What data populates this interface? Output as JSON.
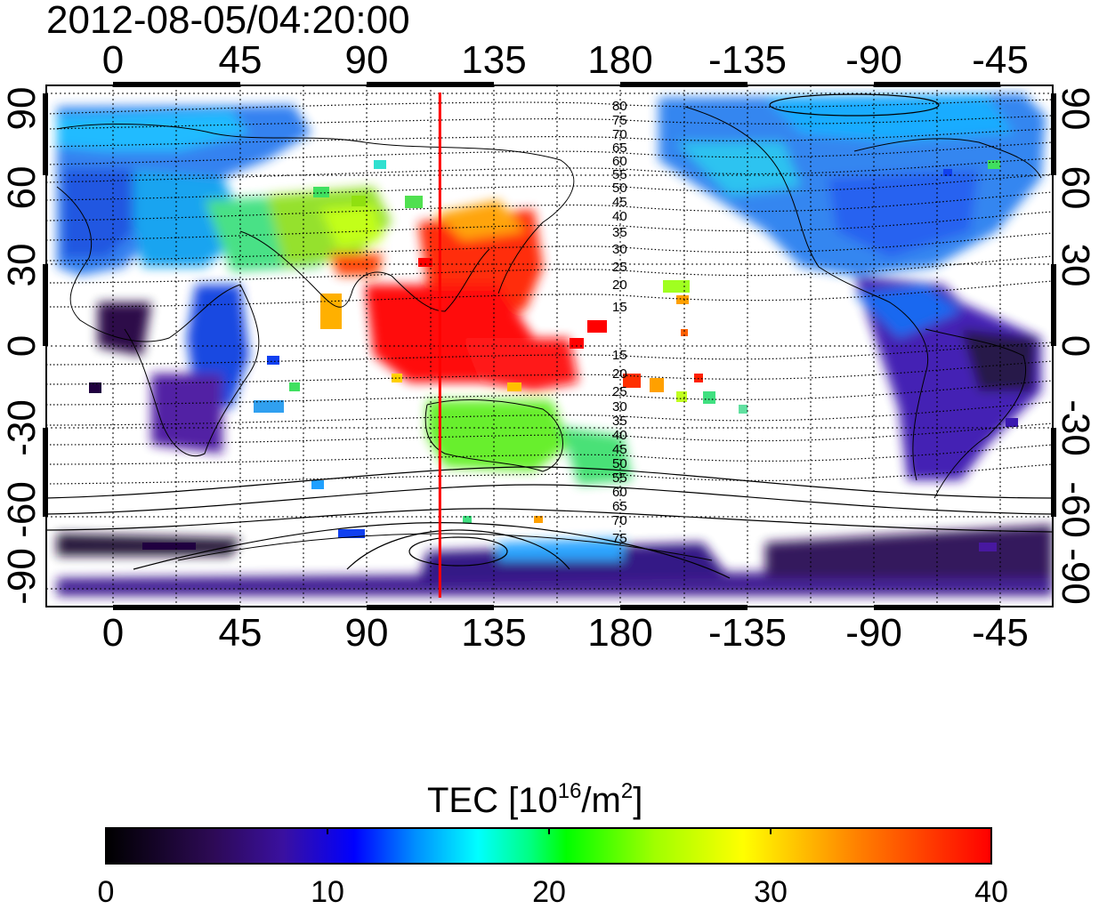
{
  "timestamp": "2012-08-05/04:20:00",
  "map": {
    "lon_ticks": [
      "0",
      "45",
      "90",
      "135",
      "180",
      "-135",
      "-90",
      "-45"
    ],
    "lat_ticks": [
      "90",
      "60",
      "30",
      "0",
      "-30",
      "-60",
      "-90"
    ],
    "contour_labels_north": [
      "80",
      "75",
      "70",
      "65",
      "60",
      "55",
      "50",
      "45",
      "40",
      "35",
      "30",
      "25",
      "20",
      "15"
    ],
    "contour_labels_south": [
      "15",
      "20",
      "25",
      "30",
      "35",
      "40",
      "45",
      "50",
      "55",
      "60",
      "65",
      "70",
      "75"
    ],
    "marker_longitude": 116,
    "marker_color": "#ff0000"
  },
  "colorbar": {
    "title": "TEC  [10",
    "title_exp": "16",
    "title_unit": "/m",
    "title_exp2": "2",
    "title_close": "]",
    "ticks": [
      "0",
      "10",
      "20",
      "30",
      "40"
    ],
    "range": [
      0,
      40
    ]
  }
}
